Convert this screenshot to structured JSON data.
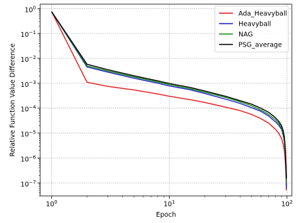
{
  "chart_data": {
    "type": "line",
    "title": "",
    "xlabel": "Epoch",
    "ylabel": "Relative Function Value Difference",
    "xscale": "log",
    "yscale": "log",
    "xlim": [
      0.8,
      110
    ],
    "ylim": [
      3e-08,
      1.5
    ],
    "grid": true,
    "legend_position": "top-right",
    "x_ticks": [
      {
        "value": 1,
        "base": "10",
        "exp": "0"
      },
      {
        "value": 10,
        "base": "10",
        "exp": "1"
      },
      {
        "value": 100,
        "base": "10",
        "exp": "2"
      }
    ],
    "y_ticks": [
      {
        "value": 1,
        "base": "10",
        "exp": "0"
      },
      {
        "value": 0.1,
        "base": "10",
        "exp": "−1"
      },
      {
        "value": 0.01,
        "base": "10",
        "exp": "−2"
      },
      {
        "value": 0.001,
        "base": "10",
        "exp": "−3"
      },
      {
        "value": 0.0001,
        "base": "10",
        "exp": "−4"
      },
      {
        "value": 1e-05,
        "base": "10",
        "exp": "−5"
      },
      {
        "value": 1e-06,
        "base": "10",
        "exp": "−6"
      },
      {
        "value": 1e-07,
        "base": "10",
        "exp": "−7"
      }
    ],
    "series": [
      {
        "name": "Ada_Heavyball",
        "color": "#e41a1c",
        "x": [
          1,
          2,
          3,
          5,
          8,
          10,
          15,
          20,
          30,
          40,
          50,
          60,
          70,
          80,
          85,
          90,
          93,
          95,
          96,
          97,
          98,
          99
        ],
        "y": [
          0.75,
          0.0011,
          0.00075,
          0.00054,
          0.00037,
          0.0003,
          0.00022,
          0.00017,
          0.00011,
          8e-05,
          5.6e-05,
          3.8e-05,
          2.5e-05,
          1.4e-05,
          1e-05,
          6e-06,
          3.5e-06,
          2e-06,
          1.2e-06,
          6e-07,
          2e-07,
          5e-08
        ]
      },
      {
        "name": "Heavyball",
        "color": "#1f1fcc",
        "x": [
          1,
          2,
          3,
          5,
          8,
          10,
          15,
          20,
          30,
          40,
          50,
          60,
          70,
          80,
          85,
          90,
          93,
          95,
          96,
          97,
          98,
          99
        ],
        "y": [
          0.75,
          0.0045,
          0.0028,
          0.0016,
          0.001,
          0.00078,
          0.00055,
          0.00039,
          0.00023,
          0.000155,
          0.000105,
          7.5e-05,
          4.8e-05,
          2.8e-05,
          2.1e-05,
          1.4e-05,
          8e-06,
          4.5e-06,
          2.8e-06,
          1.4e-06,
          4e-07,
          6e-08
        ]
      },
      {
        "name": "NAG",
        "color": "#1a8a1a",
        "x": [
          1,
          2,
          3,
          5,
          8,
          10,
          15,
          20,
          30,
          40,
          50,
          60,
          70,
          80,
          85,
          90,
          93,
          95,
          96,
          97,
          98,
          99
        ],
        "y": [
          0.75,
          0.005,
          0.0031,
          0.0018,
          0.00112,
          0.00088,
          0.00061,
          0.00044,
          0.00027,
          0.00018,
          0.000125,
          8.5e-05,
          5.6e-05,
          3.4e-05,
          2.5e-05,
          1.6e-05,
          9e-06,
          5e-06,
          3e-06,
          1.5e-06,
          5e-07,
          1e-07
        ]
      },
      {
        "name": "PSG_average",
        "color": "#000000",
        "x": [
          1,
          2,
          3,
          5,
          8,
          10,
          15,
          20,
          30,
          40,
          50,
          60,
          70,
          80,
          85,
          90,
          93,
          95,
          96,
          97,
          98,
          99
        ],
        "y": [
          0.75,
          0.0058,
          0.0035,
          0.002,
          0.00125,
          0.00098,
          0.00068,
          0.00049,
          0.0003,
          0.0002,
          0.000145,
          0.0001,
          6.8e-05,
          4.1e-05,
          3e-05,
          2e-05,
          1.2e-05,
          7e-06,
          4e-06,
          2e-06,
          6e-07,
          1.5e-07
        ]
      }
    ]
  }
}
